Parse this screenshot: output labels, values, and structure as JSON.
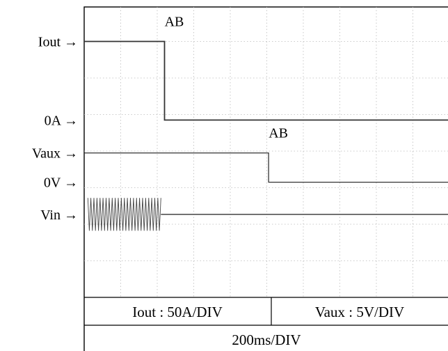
{
  "chart_data": {
    "type": "line",
    "title": "",
    "xlabel": "",
    "ylabel": "",
    "grid": true,
    "xlim": [
      0,
      10
    ],
    "ylim": [
      0,
      8
    ],
    "units": {
      "x": "div",
      "y": "div"
    },
    "y_markers": [
      {
        "label": "Iout →",
        "y": 7.0
      },
      {
        "label": "0A →",
        "y": 4.85
      },
      {
        "label": "Vaux →",
        "y": 3.95
      },
      {
        "label": "0V →",
        "y": 3.15
      },
      {
        "label": "Vin →",
        "y": 2.27
      }
    ],
    "series": [
      {
        "name": "Iout",
        "points": [
          [
            0,
            7.0
          ],
          [
            2.2,
            7.0
          ],
          [
            2.2,
            4.85
          ],
          [
            10,
            4.85
          ]
        ],
        "annotation": {
          "text": "AB",
          "x": 2.2
        }
      },
      {
        "name": "Vaux",
        "points": [
          [
            0,
            3.95
          ],
          [
            5.05,
            3.95
          ],
          [
            5.05,
            3.15
          ],
          [
            10,
            3.15
          ]
        ],
        "annotation": {
          "text": "AB",
          "x": 5.05
        }
      },
      {
        "name": "Vin",
        "points": [
          [
            2.1,
            2.27
          ],
          [
            10,
            2.27
          ]
        ],
        "ripple": {
          "x_start": 0.1,
          "x_end": 2.1,
          "center": 2.27,
          "amplitude": 0.45,
          "cycles": 24
        }
      }
    ]
  },
  "footer": {
    "iout_scale": "Iout : 50A/DIV",
    "vaux_scale": "Vaux : 5V/DIV",
    "time_scale": "200ms/DIV"
  }
}
